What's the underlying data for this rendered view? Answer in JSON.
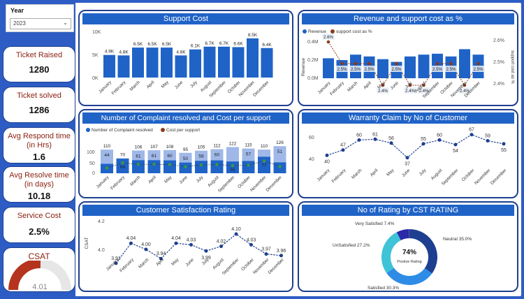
{
  "slicer": {
    "title": "Year",
    "value": "2023"
  },
  "kpis": [
    {
      "label": "Ticket Raised",
      "value": "1280"
    },
    {
      "label": "Ticket solved",
      "value": "1286"
    },
    {
      "label": "Avg Respond time (in Hrs)",
      "value": "1.6"
    },
    {
      "label": "Avg Resolve time (in days)",
      "value": "10.18"
    },
    {
      "label": "Service Cost",
      "value": "2.5%"
    },
    {
      "label": "CSAT",
      "value": "4.01"
    }
  ],
  "months": [
    "January",
    "February",
    "March",
    "April",
    "May",
    "June",
    "July",
    "August",
    "September",
    "October",
    "November",
    "December"
  ],
  "colors": {
    "bar": "#1f63c7",
    "title_bg": "#1f63c7",
    "border": "#1e3f8f",
    "kpi_label": "#8b2212",
    "gauge": "#b5341d",
    "line": "#1e3f8f",
    "dot_brown": "#8b3a1a",
    "light_bar": "#9fb8e8"
  },
  "support_cost": {
    "title": "Support Cost",
    "y_ticks": [
      "10K",
      "5K",
      "0K"
    ],
    "labels": [
      "4.9K",
      "4.8K",
      "6.5K",
      "6.5K",
      "6.5K",
      "4.8K",
      "6.1K",
      "6.7K",
      "6.7K",
      "6.6K",
      "8.5K",
      "6.4K"
    ]
  },
  "revenue": {
    "title": "Revenue and support cost as %",
    "legend": [
      "Revenue",
      "support cost as %"
    ],
    "y_left": [
      "0.4M",
      "0.2M",
      "0.0M"
    ],
    "ylabel_left": "Revenue",
    "y_right": [
      "2.6%",
      "2.5%",
      "2.4%"
    ],
    "ylabel_right": "support cost as %",
    "pct_labels": [
      "2.6%",
      "2.5%",
      "2.5%",
      "2.5%",
      "2.4%",
      "2.5%",
      "2.4%",
      "2.4%",
      "2.5%",
      "2.5%",
      "2.4%",
      "2.5%"
    ]
  },
  "complaints": {
    "title": "Number of Complaint resolved and Cost per support",
    "legend": [
      "Number of Complaint resolved",
      "Cost per support"
    ],
    "y_ticks": [
      "100",
      "50",
      "0"
    ],
    "top_labels": [
      "110",
      "70",
      "106",
      "107",
      "108",
      "95",
      "105",
      "112",
      "122",
      "115",
      "110",
      "126"
    ],
    "mid_labels": [
      "44",
      "68",
      "61",
      "61",
      "60",
      "50",
      "58",
      "60",
      "55",
      "57",
      "77",
      "51"
    ]
  },
  "warranty": {
    "title": "Warranty Claim by No of Customer",
    "y_ticks": [
      "60",
      "40"
    ],
    "values": [
      "40",
      "47",
      "60",
      "61",
      "56",
      "37",
      "55",
      "60",
      "54",
      "67",
      "59",
      "55"
    ]
  },
  "csat_rating": {
    "title": "Customer Satisfaction Rating",
    "ylabel": "CSAT",
    "y_ticks": [
      "4.2",
      "4.0"
    ],
    "values": [
      "3.91",
      "4.04",
      "4.00",
      "3.94",
      "4.04",
      "4.03",
      "3.99",
      "4.02",
      "4.10",
      "4.03",
      "3.97",
      "3.96"
    ]
  },
  "rating": {
    "title": "No of Rating by CST RATING",
    "center_value": "74%",
    "center_label": "Postive Rating",
    "slices": [
      {
        "label": "Neutral 35.0%",
        "value": 35.0,
        "color": "#1e3f8f"
      },
      {
        "label": "Satisfied 30.3%",
        "value": 30.3,
        "color": "#2e8ce6"
      },
      {
        "label": "UnSatisfied 27.2%",
        "value": 27.2,
        "color": "#3fc3d6"
      },
      {
        "label": "Very Satisfied 7.4%",
        "value": 7.4,
        "color": "#2a2aa8"
      }
    ]
  },
  "chart_data": [
    {
      "type": "bar",
      "title": "Support Cost",
      "categories": [
        "January",
        "February",
        "March",
        "April",
        "May",
        "June",
        "July",
        "August",
        "September",
        "October",
        "November",
        "December"
      ],
      "values": [
        4.9,
        4.8,
        6.5,
        6.5,
        6.5,
        4.8,
        6.1,
        6.7,
        6.7,
        6.6,
        8.5,
        6.4
      ],
      "ylim": [
        0,
        10
      ]
    },
    {
      "type": "bar",
      "title": "Revenue and support cost as %",
      "categories": [
        "January",
        "February",
        "March",
        "April",
        "May",
        "June",
        "July",
        "August",
        "September",
        "October",
        "November",
        "December"
      ],
      "series": [
        {
          "name": "Revenue",
          "values": [
            0.22,
            0.2,
            0.26,
            0.24,
            0.21,
            0.18,
            0.24,
            0.26,
            0.27,
            0.24,
            0.32,
            0.26
          ]
        },
        {
          "name": "support cost as %",
          "values": [
            2.6,
            2.5,
            2.5,
            2.5,
            2.4,
            2.5,
            2.4,
            2.4,
            2.5,
            2.5,
            2.4,
            2.5
          ]
        }
      ]
    },
    {
      "type": "bar",
      "title": "Number of Complaint resolved and Cost per support",
      "categories": [
        "January",
        "February",
        "March",
        "April",
        "May",
        "June",
        "July",
        "August",
        "September",
        "October",
        "November",
        "December"
      ],
      "series": [
        {
          "name": "Number of Complaint resolved",
          "values": [
            110,
            70,
            106,
            107,
            108,
            95,
            105,
            112,
            122,
            115,
            110,
            126
          ]
        },
        {
          "name": "Cost per support",
          "values": [
            44,
            68,
            61,
            61,
            60,
            50,
            58,
            60,
            55,
            57,
            77,
            51
          ]
        }
      ]
    },
    {
      "type": "line",
      "title": "Warranty Claim by No of Customer",
      "categories": [
        "January",
        "February",
        "March",
        "April",
        "May",
        "June",
        "July",
        "August",
        "September",
        "October",
        "November",
        "December"
      ],
      "values": [
        40,
        47,
        60,
        61,
        56,
        37,
        55,
        60,
        54,
        67,
        59,
        55
      ]
    },
    {
      "type": "line",
      "title": "Customer Satisfaction Rating",
      "categories": [
        "January",
        "February",
        "March",
        "April",
        "May",
        "June",
        "July",
        "August",
        "September",
        "October",
        "November",
        "December"
      ],
      "values": [
        3.91,
        4.04,
        4.0,
        3.94,
        4.04,
        4.03,
        3.99,
        4.02,
        4.1,
        4.03,
        3.97,
        3.96
      ],
      "ylabel": "CSAT"
    },
    {
      "type": "pie",
      "title": "No of Rating by CST RATING",
      "categories": [
        "Neutral",
        "Satisfied",
        "UnSatisfied",
        "Very Satisfied"
      ],
      "values": [
        35.0,
        30.3,
        27.2,
        7.4
      ]
    }
  ]
}
